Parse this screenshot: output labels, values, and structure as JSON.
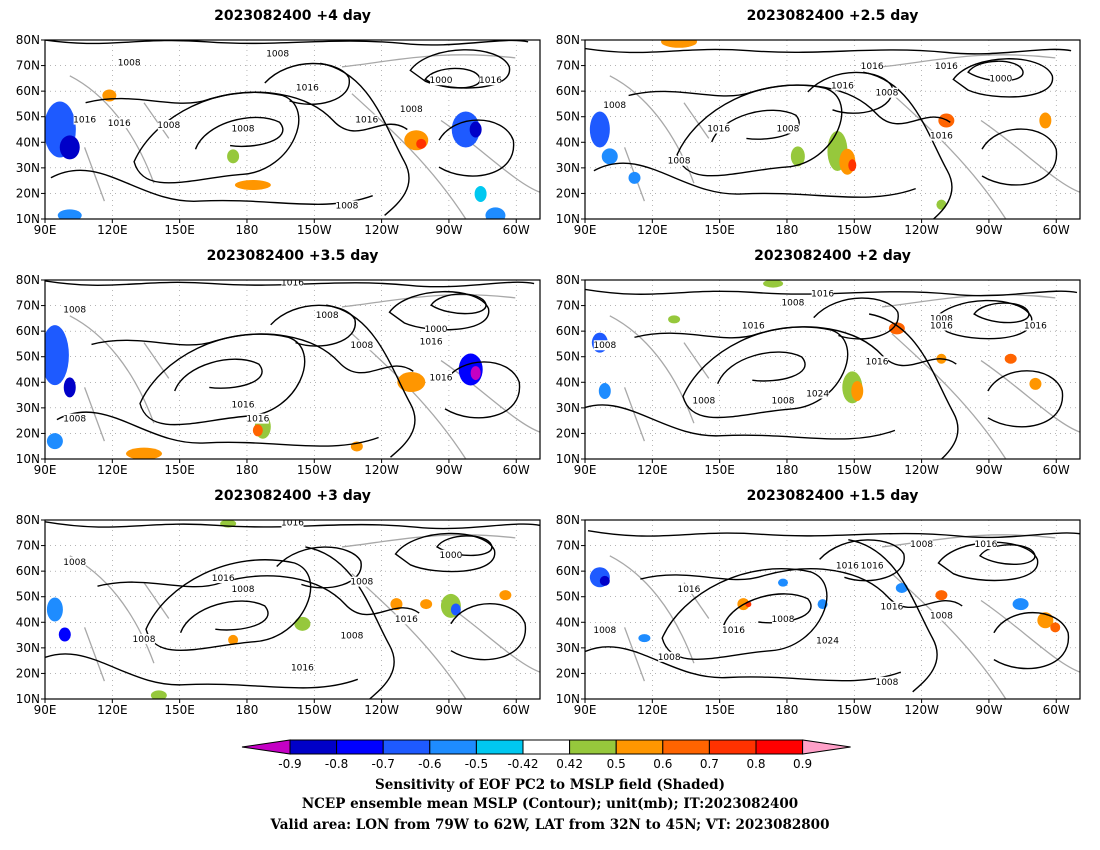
{
  "panels": [
    {
      "title": "2023082400  +4 day"
    },
    {
      "title": "2023082400  +2.5  day"
    },
    {
      "title": "2023082400  +3.5  day"
    },
    {
      "title": "2023082400  +2  day"
    },
    {
      "title": "2023082400  +3  day"
    },
    {
      "title": "2023082400  +1.5  day"
    }
  ],
  "lat_ticks": [
    "80N",
    "70N",
    "60N",
    "50N",
    "40N",
    "30N",
    "20N",
    "10N"
  ],
  "lon_ticks": [
    "90E",
    "120E",
    "150E",
    "180",
    "150W",
    "120W",
    "90W",
    "60W"
  ],
  "contour_labels": [
    [
      "1008",
      "1008",
      "1016",
      "1008",
      "1016",
      "1008",
      "1016",
      "1008",
      "1000",
      "1016",
      "1016",
      "1008"
    ],
    [
      "1016",
      "1008",
      "1016",
      "1016",
      "1008",
      "1000",
      "1016",
      "1008",
      "1016",
      "1008"
    ],
    [
      "1016",
      "1008",
      "1008",
      "1008",
      "1000",
      "1016",
      "1016",
      "1016",
      "1016",
      "1008"
    ],
    [
      "1016",
      "1008",
      "1008",
      "1016",
      "1008",
      "1016",
      "1016",
      "1008",
      "1024",
      "1016",
      "1008"
    ],
    [
      "1016",
      "1008",
      "1016",
      "1008",
      "1000",
      "1008",
      "1016",
      "1016",
      "1008",
      "1008"
    ],
    [
      "1008",
      "1016",
      "1016",
      "1008",
      "1016",
      "1008",
      "1008",
      "1016",
      "1016",
      "1024",
      "1016",
      "1008",
      "1008"
    ]
  ],
  "colorbar": {
    "ticks": [
      "-0.9",
      "-0.8",
      "-0.7",
      "-0.6",
      "-0.5",
      "-0.42",
      "0.42",
      "0.5",
      "0.6",
      "0.7",
      "0.8",
      "0.9"
    ],
    "colors": [
      "#c400c4",
      "#0000c8",
      "#0000ff",
      "#1e5aff",
      "#1e8cff",
      "#00c8f0",
      "#ffffff",
      "#96c83c",
      "#ff9600",
      "#ff6400",
      "#ff3200",
      "#ff0000",
      "#ffa0c8"
    ]
  },
  "caption": {
    "line1": "Sensitivity of EOF PC2 to MSLP field (Shaded)",
    "line2": "NCEP ensemble mean MSLP (Contour); unit(mb); IT:2023082400",
    "line3": "Valid area: LON from 79W to 62W, LAT from 32N to 45N; VT: 2023082800"
  }
}
